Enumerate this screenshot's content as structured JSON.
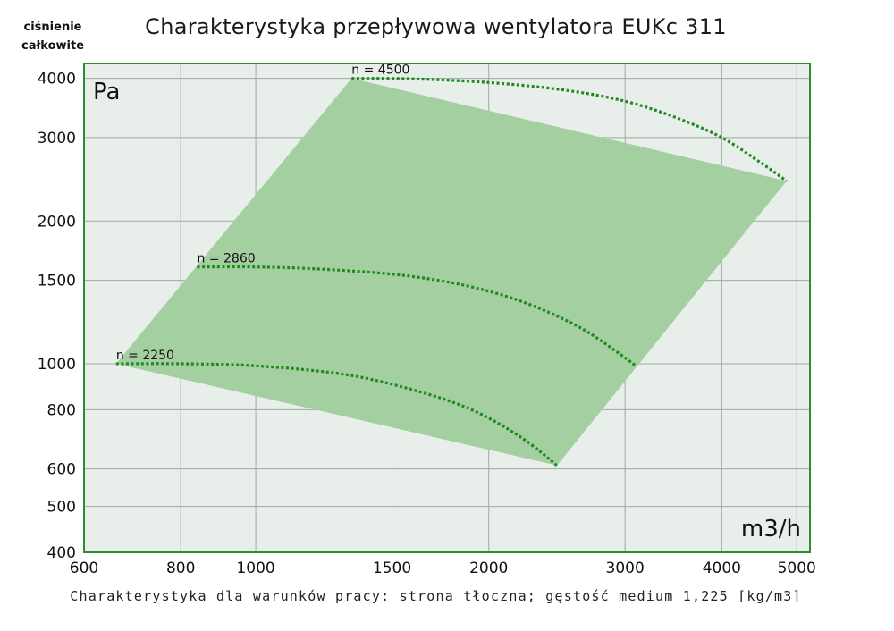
{
  "title": "Charakterystyka przepływowa wentylatora EUKc 311",
  "y_axis_caption": [
    "ciśnienie",
    "całkowite"
  ],
  "footnote": "Charakterystyka dla warunków pracy: strona tłoczna; gęstość medium 1,225 [kg/m3]",
  "colors": {
    "frame": "#2e8b2e",
    "plot_bg": "#e8eeea",
    "region_fill": "#a3cfa1",
    "curve": "#1e8a1e",
    "grid": "#a0a8a4"
  },
  "chart_data": {
    "type": "line",
    "title": "Charakterystyka przepływowa wentylatora EUKc 311",
    "xlabel": "m3/h",
    "ylabel": "Pa",
    "x_scale": "log",
    "y_scale": "log",
    "xlim": [
      600,
      5200
    ],
    "ylim": [
      400,
      4300
    ],
    "x_ticks": [
      600,
      800,
      1000,
      1500,
      2000,
      3000,
      4000,
      5000
    ],
    "y_ticks": [
      400,
      500,
      600,
      800,
      1000,
      1500,
      2000,
      3000,
      4000
    ],
    "grid": true,
    "operating_region": [
      [
        660,
        1000
      ],
      [
        1330,
        4000
      ],
      [
        4850,
        2430
      ],
      [
        2450,
        610
      ]
    ],
    "series": [
      {
        "name": "n = 4500",
        "x": [
          1330,
          1600,
          2000,
          2500,
          3000,
          3500,
          4000,
          4500,
          4850
        ],
        "y": [
          4000,
          3990,
          3920,
          3780,
          3580,
          3300,
          3000,
          2650,
          2430
        ]
      },
      {
        "name": "n = 2860",
        "x": [
          840,
          1000,
          1200,
          1500,
          1800,
          2100,
          2400,
          2700,
          3100
        ],
        "y": [
          1600,
          1600,
          1585,
          1545,
          1480,
          1390,
          1280,
          1160,
          990
        ]
      },
      {
        "name": "n = 2250",
        "x": [
          660,
          800,
          1000,
          1300,
          1600,
          1900,
          2200,
          2450
        ],
        "y": [
          1000,
          1000,
          990,
          950,
          880,
          800,
          700,
          610
        ]
      }
    ]
  }
}
